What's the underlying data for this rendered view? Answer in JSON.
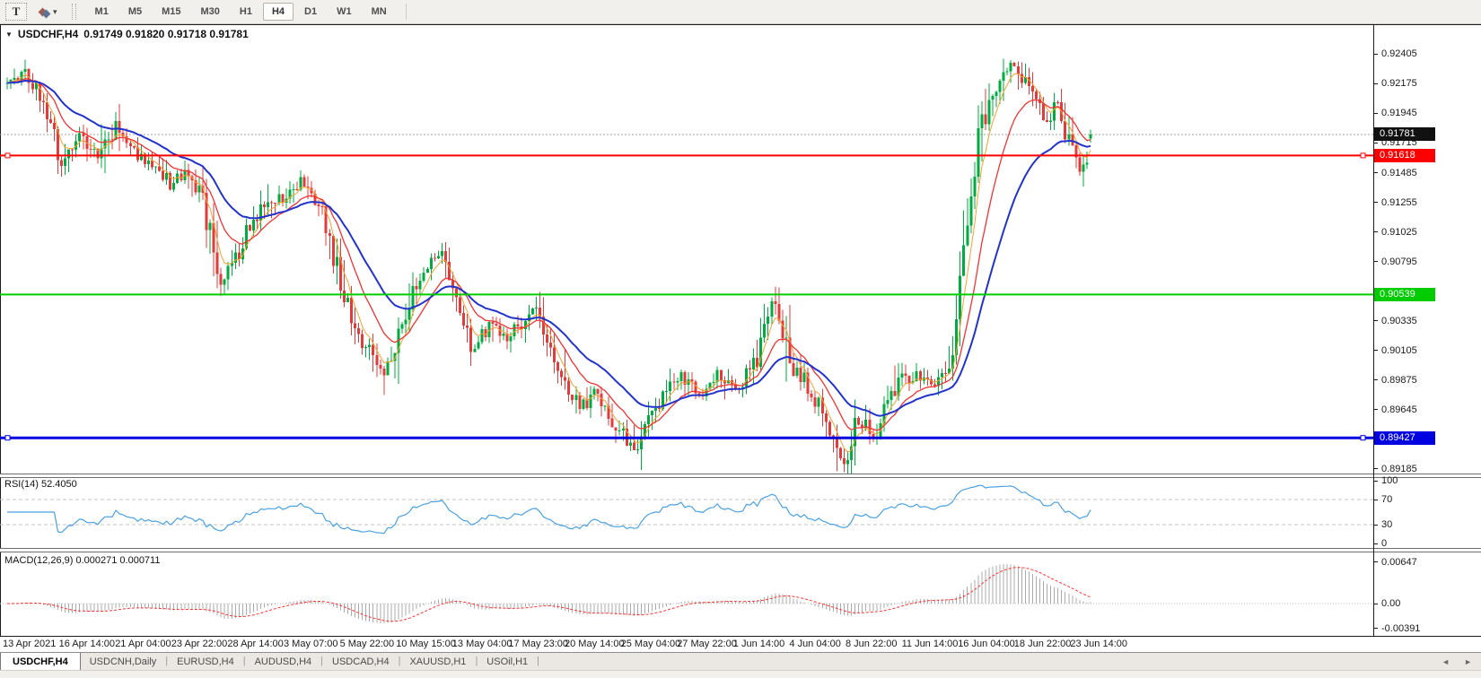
{
  "toolbar": {
    "text_tool": "T",
    "dropdown_icon": "▾",
    "timeframes": [
      "M1",
      "M5",
      "M15",
      "M30",
      "H1",
      "H4",
      "D1",
      "W1",
      "MN"
    ],
    "active_timeframe": "H4"
  },
  "chart_header": {
    "collapse_icon": "▼",
    "symbol_label": "USDCHF,H4",
    "ohlc_line": "0.91749 0.91820 0.91718 0.91781"
  },
  "tabs": {
    "items": [
      "USDCHF,H4",
      "USDCNH,Daily",
      "EURUSD,H4",
      "AUDUSD,H4",
      "USDCAD,H4",
      "XAUUSD,H1",
      "USOil,H1"
    ],
    "active_index": 0,
    "scroll_left_icon": "◄",
    "scroll_right_icon": "►"
  },
  "chart_data": {
    "type": "candlestick",
    "title": "USDCHF,H4",
    "symbol": "USDCHF",
    "timeframe": "H4",
    "n_candles": 300,
    "seed": 11,
    "y_range": [
      0.8915,
      0.9263
    ],
    "y_ticks": [
      "0.92405",
      "0.92175",
      "0.91945",
      "0.91715",
      "0.91485",
      "0.91255",
      "0.91025",
      "0.90795",
      "0.90335",
      "0.90105",
      "0.89875",
      "0.89645",
      "0.89185"
    ],
    "x_labels": [
      "13 Apr 2021",
      "16 Apr 14:00",
      "21 Apr 04:00",
      "23 Apr 22:00",
      "28 Apr 14:00",
      "3 May 07:00",
      "5 May 22:00",
      "10 May 15:00",
      "13 May 04:00",
      "17 May 23:00",
      "20 May 14:00",
      "25 May 04:00",
      "27 May 22:00",
      "1 Jun 14:00",
      "4 Jun 04:00",
      "8 Jun 22:00",
      "11 Jun 14:00",
      "16 Jun 04:00",
      "18 Jun 22:00",
      "23 Jun 14:00"
    ],
    "last_ohlc": {
      "open": 0.91749,
      "high": 0.9182,
      "low": 0.91718,
      "close": 0.91781
    },
    "current_price": {
      "value": 0.91781,
      "label": "0.91781",
      "box_color": "#111111",
      "line_color": "#a0a0a0"
    },
    "up_color": "#00AB3F",
    "down_color": "#E13B3B",
    "horizontal_lines": [
      {
        "price": 0.91618,
        "label": "0.91618",
        "color": "#FF0000",
        "width": 2,
        "name": "resistance-line-red"
      },
      {
        "price": 0.90539,
        "label": "0.90539",
        "color": "#00CC00",
        "width": 2,
        "name": "level-line-green"
      },
      {
        "price": 0.89427,
        "label": "0.89427",
        "color": "#0000E0",
        "width": 3,
        "name": "support-line-blue"
      }
    ],
    "moving_averages": [
      {
        "name": "ma-fast-orange",
        "period": 5,
        "color": "#F7A02E",
        "width": 1
      },
      {
        "name": "ma-mid-red",
        "period": 13,
        "color": "#F03333",
        "width": 1.3
      },
      {
        "name": "ma-slow-blue",
        "period": 28,
        "color": "#2233CC",
        "width": 2
      }
    ],
    "price_path_anchors": [
      [
        0,
        0.9218
      ],
      [
        0.015,
        0.9227
      ],
      [
        0.035,
        0.9205
      ],
      [
        0.05,
        0.9155
      ],
      [
        0.065,
        0.918
      ],
      [
        0.085,
        0.916
      ],
      [
        0.1,
        0.9185
      ],
      [
        0.12,
        0.9163
      ],
      [
        0.14,
        0.915
      ],
      [
        0.152,
        0.9138
      ],
      [
        0.165,
        0.9152
      ],
      [
        0.18,
        0.913
      ],
      [
        0.193,
        0.9075
      ],
      [
        0.2,
        0.9062
      ],
      [
        0.21,
        0.908
      ],
      [
        0.225,
        0.911
      ],
      [
        0.24,
        0.913
      ],
      [
        0.256,
        0.9128
      ],
      [
        0.27,
        0.9143
      ],
      [
        0.285,
        0.913
      ],
      [
        0.3,
        0.909
      ],
      [
        0.307,
        0.906
      ],
      [
        0.33,
        0.9015
      ],
      [
        0.348,
        0.8993
      ],
      [
        0.36,
        0.9022
      ],
      [
        0.375,
        0.9058
      ],
      [
        0.39,
        0.908
      ],
      [
        0.4,
        0.9088
      ],
      [
        0.415,
        0.9045
      ],
      [
        0.43,
        0.9012
      ],
      [
        0.445,
        0.9028
      ],
      [
        0.463,
        0.902
      ],
      [
        0.485,
        0.9045
      ],
      [
        0.5,
        0.902
      ],
      [
        0.515,
        0.8985
      ],
      [
        0.53,
        0.8966
      ],
      [
        0.545,
        0.898
      ],
      [
        0.56,
        0.8955
      ],
      [
        0.567,
        0.8945
      ],
      [
        0.58,
        0.8932
      ],
      [
        0.595,
        0.8958
      ],
      [
        0.62,
        0.8992
      ],
      [
        0.64,
        0.8975
      ],
      [
        0.655,
        0.8992
      ],
      [
        0.671,
        0.898
      ],
      [
        0.69,
        0.9
      ],
      [
        0.705,
        0.9048
      ],
      [
        0.715,
        0.903
      ],
      [
        0.723,
        0.9
      ],
      [
        0.735,
        0.8988
      ],
      [
        0.75,
        0.8965
      ],
      [
        0.765,
        0.8935
      ],
      [
        0.775,
        0.8925
      ],
      [
        0.785,
        0.8958
      ],
      [
        0.8,
        0.8945
      ],
      [
        0.815,
        0.8972
      ],
      [
        0.826,
        0.8988
      ],
      [
        0.84,
        0.8992
      ],
      [
        0.855,
        0.8985
      ],
      [
        0.868,
        0.8998
      ],
      [
        0.878,
        0.904
      ],
      [
        0.888,
        0.913
      ],
      [
        0.898,
        0.918
      ],
      [
        0.91,
        0.9208
      ],
      [
        0.92,
        0.9222
      ],
      [
        0.93,
        0.9235
      ],
      [
        0.94,
        0.9215
      ],
      [
        0.95,
        0.92
      ],
      [
        0.96,
        0.919
      ],
      [
        0.968,
        0.92
      ],
      [
        0.976,
        0.9185
      ],
      [
        0.984,
        0.916
      ],
      [
        0.992,
        0.915
      ],
      [
        0.997,
        0.9165
      ],
      [
        1,
        0.91781
      ]
    ],
    "indicators": {
      "rsi": {
        "label": "RSI(14) 52.4050",
        "period": 14,
        "last": 52.405,
        "range": [
          0,
          100
        ],
        "axis_ticks": [
          "100",
          "70",
          "30",
          "0"
        ],
        "dashed_levels": [
          70,
          30
        ],
        "color": "#4AA1E0"
      },
      "macd": {
        "label": "MACD(12,26,9) 0.000271 0.000711",
        "params": [
          12,
          26,
          9
        ],
        "last_macd": 0.000271,
        "last_signal": 0.000711,
        "axis_ticks": [
          "0.00647",
          "0.00",
          "-0.00391"
        ],
        "hist_color": "#ABABAB",
        "signal_color": "#FF3030"
      }
    }
  }
}
